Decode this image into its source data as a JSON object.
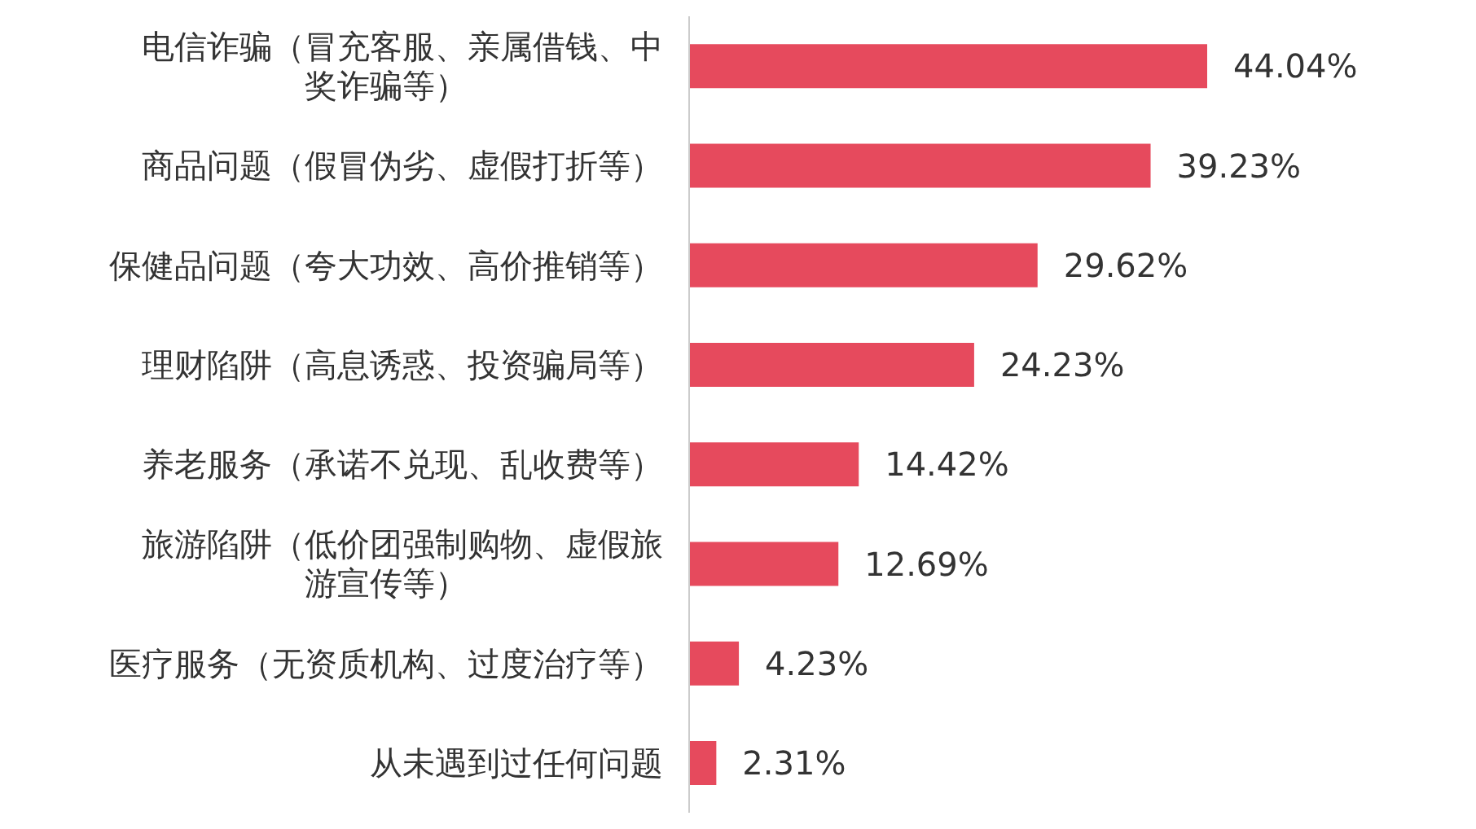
{
  "chart_data": {
    "type": "bar",
    "orientation": "horizontal",
    "categories": [
      "电信诈骗（冒充客服、亲属借钱、中奖诈骗等）",
      "商品问题（假冒伪劣、虚假打折等）",
      "保健品问题（夸大功效、高价推销等）",
      "理财陷阱（高息诱惑、投资骗局等）",
      "养老服务（承诺不兑现、乱收费等）",
      "旅游陷阱（低价团强制购物、虚假旅游宣传等）",
      "医疗服务（无资质机构、过度治疗等）",
      "从未遇到过任何问题"
    ],
    "values": [
      44.04,
      39.23,
      29.62,
      24.23,
      14.42,
      12.69,
      4.23,
      2.31
    ],
    "value_labels": [
      "44.04%",
      "39.23%",
      "29.62%",
      "24.23%",
      "14.42%",
      "12.69%",
      "4.23%",
      "2.31%"
    ],
    "color": "#e64a5d"
  }
}
